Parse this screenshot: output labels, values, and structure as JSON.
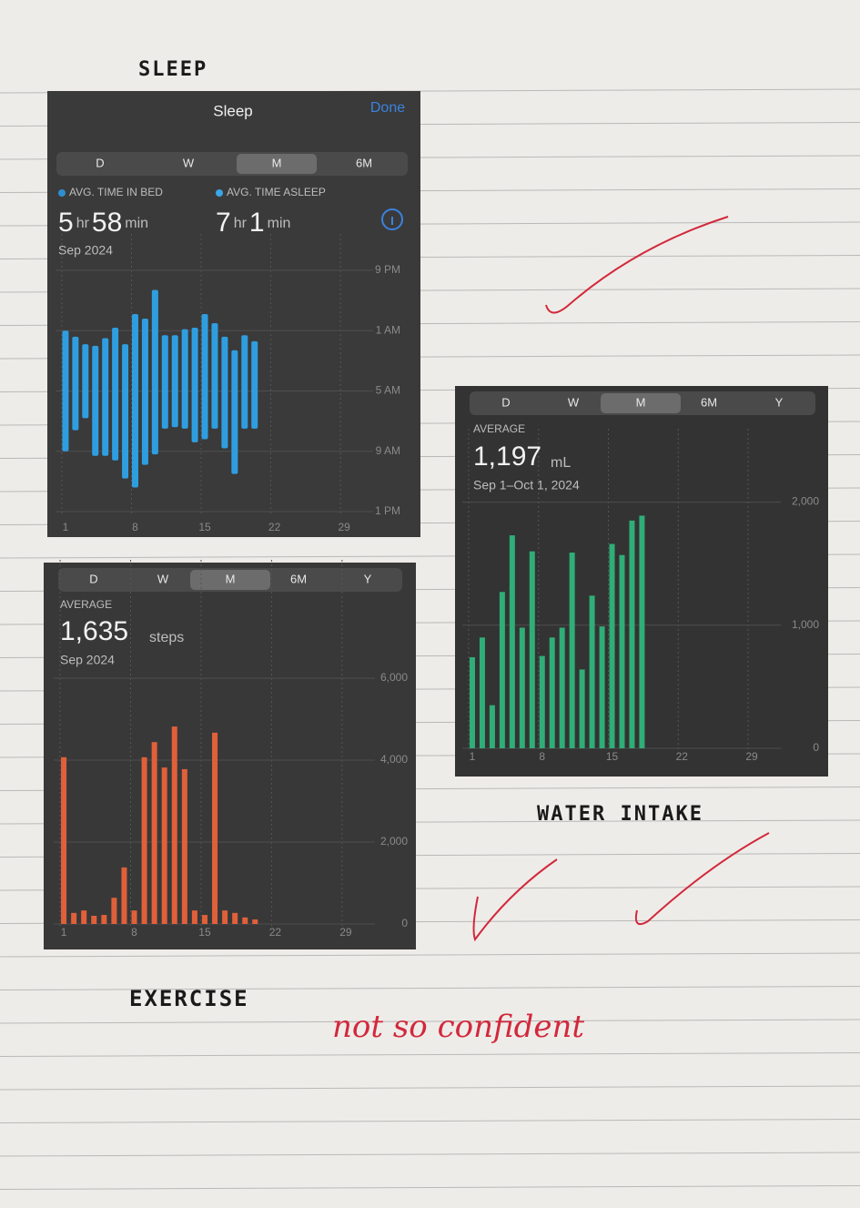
{
  "notes": [
    "SLEEP",
    "WATER INTAKE",
    "EXERCISE",
    "not so confident"
  ],
  "chart_data": [
    {
      "type": "range_bar",
      "title": "Sleep",
      "action": "Done",
      "tabs": [
        "D",
        "W",
        "M",
        "6M"
      ],
      "selected_tab": 2,
      "legend": [
        {
          "name": "AVG. TIME IN BED",
          "color": "#2d8fd0",
          "value": [
            "5",
            "hr",
            "58",
            "min"
          ]
        },
        {
          "name": "AVG. TIME ASLEEP",
          "color": "#3aa6e6",
          "value": [
            "7",
            "hr",
            "1",
            "min"
          ]
        }
      ],
      "period": "Sep 2024",
      "color": "#2f9ee0",
      "x": [
        1,
        2,
        3,
        4,
        5,
        6,
        7,
        8,
        9,
        10,
        11,
        12,
        13,
        14,
        15,
        16,
        17,
        18,
        19,
        20
      ],
      "start": [
        4.0,
        4.4,
        4.9,
        5.0,
        4.5,
        3.8,
        4.9,
        2.9,
        3.2,
        1.3,
        4.3,
        4.3,
        3.9,
        3.8,
        2.9,
        3.5,
        4.4,
        5.3,
        4.3,
        4.7
      ],
      "end": [
        12.0,
        10.6,
        9.8,
        12.3,
        12.3,
        12.6,
        13.8,
        14.4,
        12.9,
        12.2,
        10.5,
        10.4,
        10.5,
        11.4,
        11.2,
        10.5,
        11.8,
        13.5,
        10.5,
        10.5
      ],
      "xlim": [
        0,
        31
      ],
      "xticks": [
        1,
        8,
        15,
        22,
        29
      ],
      "ylim": [
        16,
        0
      ],
      "yticks": [
        {
          "value": 0,
          "label": "9 PM"
        },
        {
          "value": 4,
          "label": "1 AM"
        },
        {
          "value": 8,
          "label": "5 AM"
        },
        {
          "value": 12,
          "label": "9 AM"
        },
        {
          "value": 16,
          "label": "1 PM"
        }
      ]
    },
    {
      "type": "bar",
      "tabs": [
        "D",
        "W",
        "M",
        "6M",
        "Y"
      ],
      "selected_tab": 2,
      "summary": {
        "label": "AVERAGE",
        "value": "1,635",
        "unit": "steps",
        "period": "Sep 2024"
      },
      "color": "#e0603a",
      "x": [
        1,
        2,
        3,
        4,
        5,
        6,
        7,
        8,
        9,
        10,
        11,
        12,
        13,
        14,
        15,
        16,
        17,
        18,
        19,
        20
      ],
      "values": [
        4070,
        270,
        330,
        200,
        220,
        640,
        1380,
        330,
        4070,
        4440,
        3820,
        4820,
        3780,
        330,
        220,
        4670,
        330,
        270,
        160,
        110
      ],
      "xlim": [
        0,
        31
      ],
      "xticks": [
        1,
        8,
        15,
        22,
        29
      ],
      "ylim": [
        0,
        8000
      ],
      "yticks": [
        0,
        {
          "value": 2000,
          "label": "2,000"
        },
        {
          "value": 4000,
          "label": "4,000"
        },
        {
          "value": 6000,
          "label": "6,000"
        }
      ]
    },
    {
      "type": "bar",
      "tabs": [
        "D",
        "W",
        "M",
        "6M",
        "Y"
      ],
      "selected_tab": 2,
      "summary": {
        "label": "AVERAGE",
        "value": "1,197",
        "unit": "mL",
        "period": "Sep 1–Oct 1, 2024"
      },
      "color": "#2fae78",
      "x": [
        1,
        2,
        3,
        4,
        5,
        6,
        7,
        8,
        9,
        10,
        11,
        12,
        13,
        14,
        15,
        16,
        17,
        18
      ],
      "values": [
        740,
        900,
        350,
        1270,
        1730,
        980,
        1600,
        750,
        900,
        980,
        1590,
        640,
        1240,
        990,
        1660,
        1570,
        1850,
        1890
      ],
      "xlim": [
        0,
        31
      ],
      "xticks": [
        1,
        8,
        15,
        22,
        29
      ],
      "ylim": [
        0,
        2300
      ],
      "yticks": [
        0,
        {
          "value": 1000,
          "label": "1,000"
        },
        {
          "value": 2000,
          "label": "2,000"
        }
      ]
    }
  ]
}
